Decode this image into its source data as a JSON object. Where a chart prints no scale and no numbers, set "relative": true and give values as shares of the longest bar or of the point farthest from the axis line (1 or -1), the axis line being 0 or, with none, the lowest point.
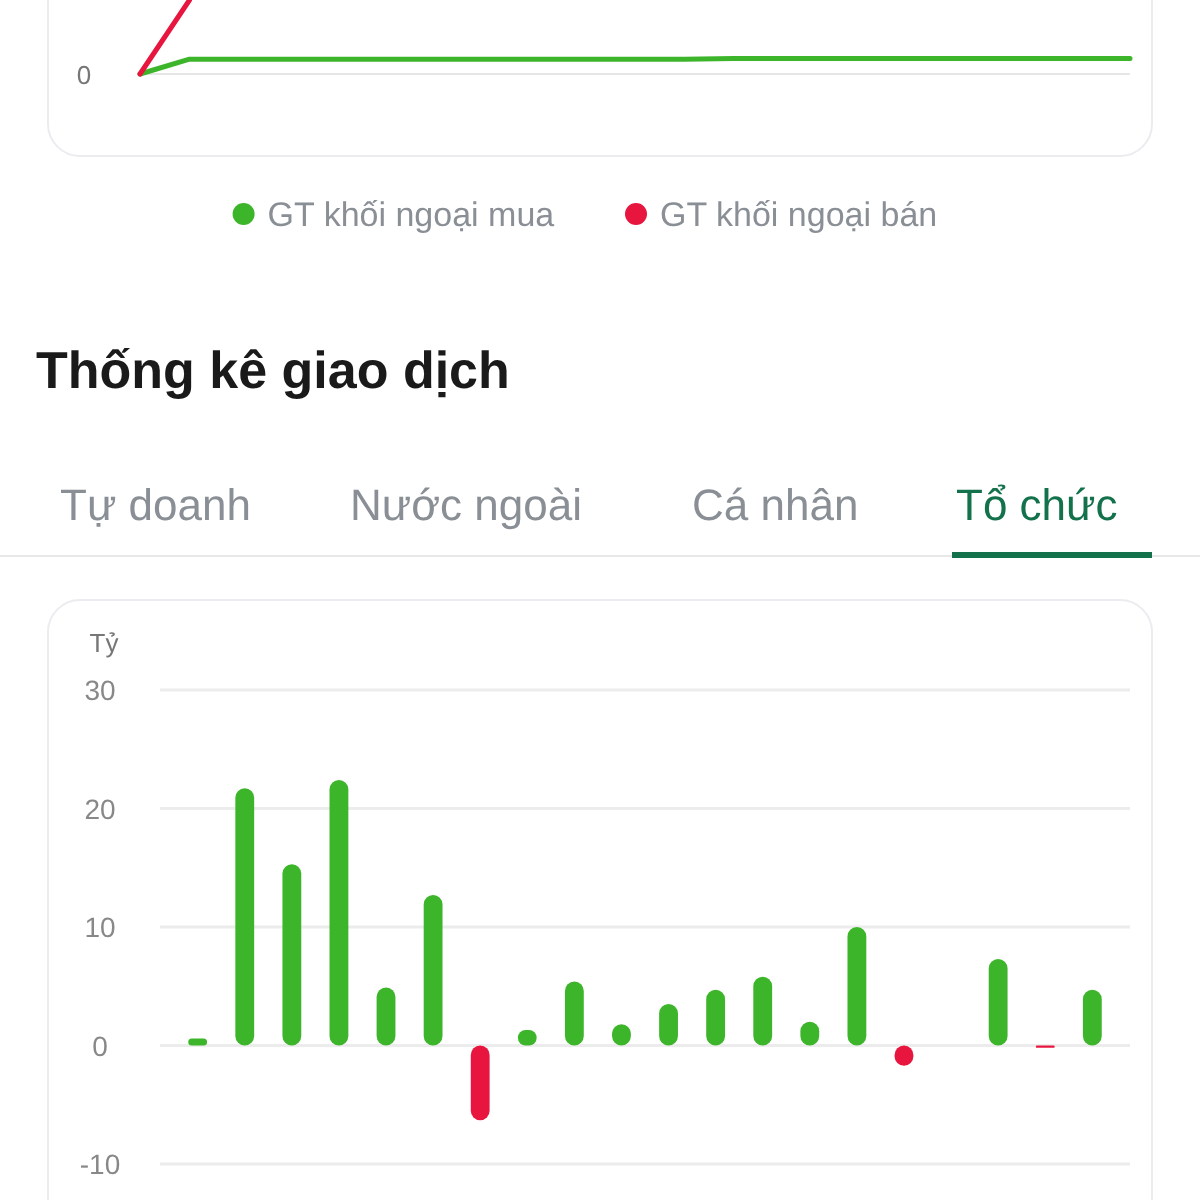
{
  "chart_data": [
    {
      "type": "line",
      "relative": true,
      "categories": [
        null,
        null,
        null,
        null,
        null,
        null,
        null,
        null,
        null,
        null,
        null,
        null,
        null,
        null,
        null,
        null,
        null,
        null,
        null,
        null,
        null
      ],
      "legend": "bottom",
      "annotations": [
        "0"
      ],
      "series": [
        {
          "name": "GT khối ngoại mua",
          "color": "#3db52a",
          "values": [
            0,
            0.2,
            0.2,
            0.2,
            0.2,
            0.2,
            0.2,
            0.2,
            0.2,
            0.2,
            0.2,
            0.2,
            0.21,
            0.21,
            0.21,
            0.21,
            0.21,
            0.21,
            0.21,
            0.21,
            0.21
          ]
        },
        {
          "name": "GT khối ngoại bán",
          "color": "#e8163f",
          "values": [
            0,
            1,
            null,
            null,
            null,
            null,
            null,
            null,
            null,
            null,
            null,
            null,
            null,
            null,
            null,
            null,
            null,
            null,
            null,
            null,
            null
          ]
        }
      ]
    },
    {
      "type": "bar",
      "title": "Thống kê giao dịch",
      "annotations": [
        "Tự doanh",
        "Nước ngoài",
        "Cá nhân",
        "Tổ chức"
      ],
      "ylabel": "Tỷ",
      "ylim": [
        -10,
        30
      ],
      "yticks": [
        -10,
        0,
        10,
        20,
        30
      ],
      "grid": "y",
      "tick_labels": "y",
      "categories": [
        null,
        null,
        null,
        null,
        null,
        null,
        null,
        null,
        null,
        null,
        null,
        null,
        null,
        null,
        null,
        null,
        null,
        null,
        null,
        null
      ],
      "values": [
        0.6,
        21.7,
        15.3,
        22.4,
        4.9,
        12.7,
        -6.3,
        1.3,
        5.4,
        1.8,
        3.5,
        4.7,
        5.8,
        2.0,
        10.0,
        -1.7,
        null,
        7.3,
        -0.2,
        4.7
      ],
      "colors": [
        "#3db52a",
        "#3db52a",
        "#3db52a",
        "#3db52a",
        "#3db52a",
        "#3db52a",
        "#e8163f",
        "#3db52a",
        "#3db52a",
        "#3db52a",
        "#3db52a",
        "#3db52a",
        "#3db52a",
        "#3db52a",
        "#3db52a",
        "#e8163f",
        "#3db52a",
        "#3db52a",
        "#e8163f",
        "#3db52a"
      ]
    }
  ]
}
